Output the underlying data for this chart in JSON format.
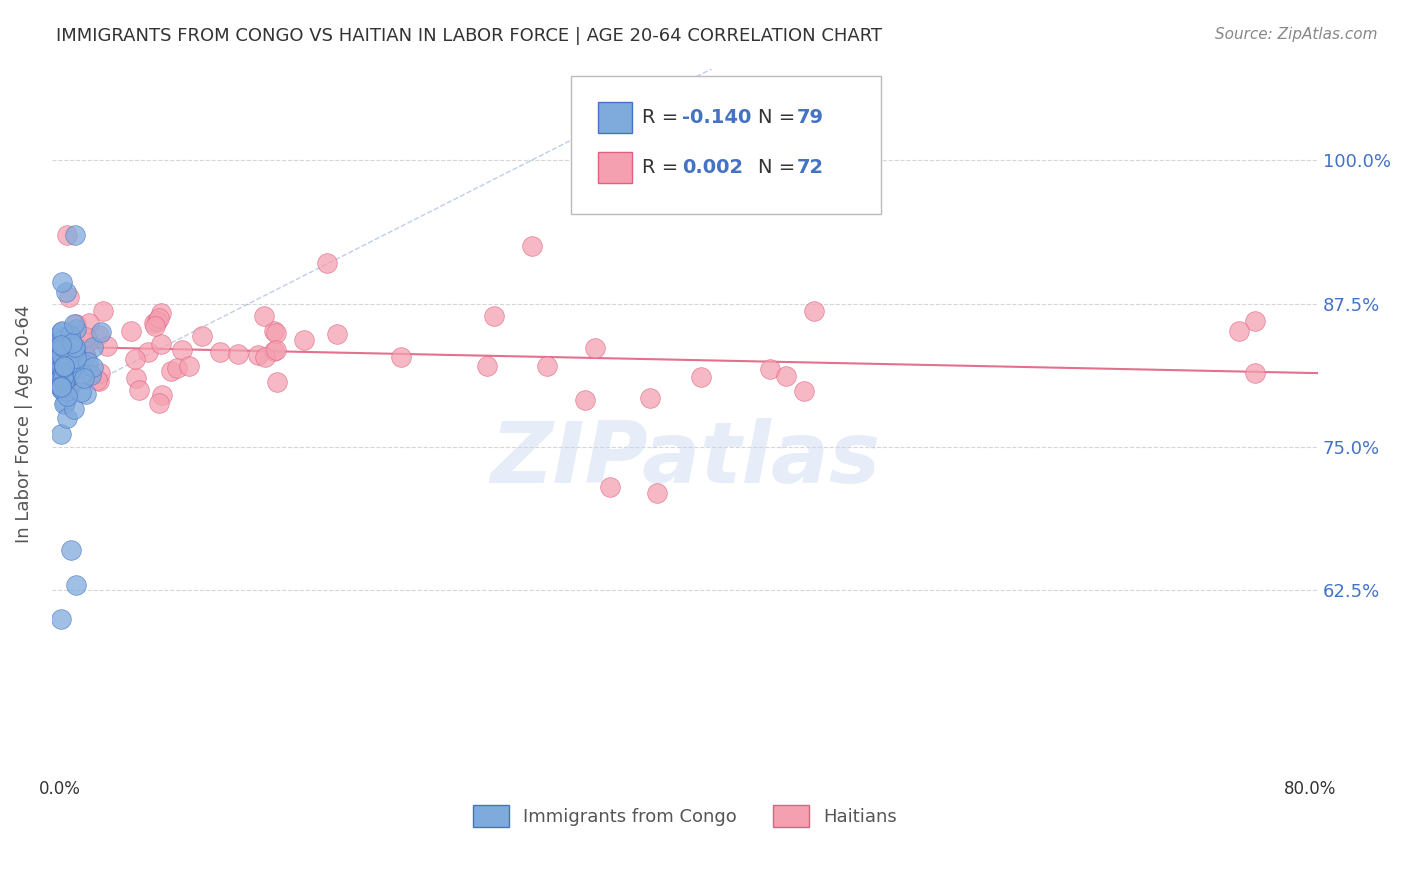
{
  "title": "IMMIGRANTS FROM CONGO VS HAITIAN IN LABOR FORCE | AGE 20-64 CORRELATION CHART",
  "source": "Source: ZipAtlas.com",
  "ylabel": "In Labor Force | Age 20-64",
  "xlim": [
    0.0,
    0.8
  ],
  "yticks": [
    0.625,
    0.75,
    0.875,
    1.0
  ],
  "ytick_labels": [
    "62.5%",
    "75.0%",
    "87.5%",
    "100.0%"
  ],
  "congo_color": "#7faadc",
  "haitian_color": "#f4a0b0",
  "congo_edge_color": "#4472c4",
  "haitian_edge_color": "#e06080",
  "trend_congo_color": "#4472c4",
  "trend_haitian_color": "#e06080",
  "legend_R_congo": "-0.140",
  "legend_N_congo": "79",
  "legend_R_haitian": "0.002",
  "legend_N_haitian": "72",
  "legend_label_congo": "Immigrants from Congo",
  "legend_label_haitian": "Haitians",
  "text_color_blue": "#4472c4",
  "title_color": "#333333",
  "watermark": "ZIPatlas",
  "background_color": "#ffffff",
  "grid_color": "#cccccc"
}
